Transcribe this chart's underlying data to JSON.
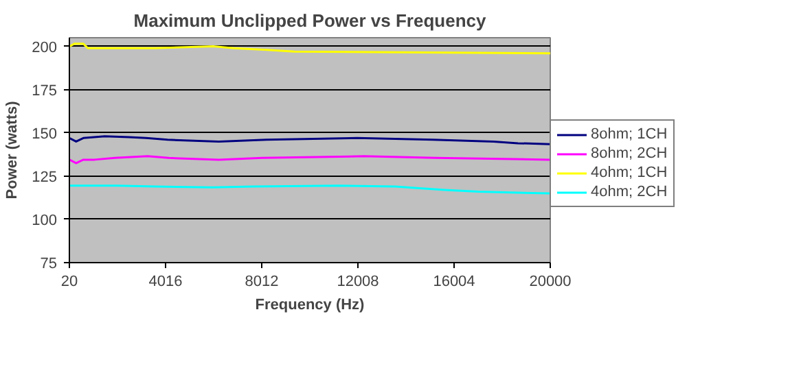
{
  "chart_data": {
    "type": "line",
    "title": "Maximum Unclipped Power vs Frequency",
    "xlabel": "Frequency (Hz)",
    "ylabel": "Power (watts)",
    "xlim": [
      20,
      20000
    ],
    "xticks": [
      20,
      4016,
      8012,
      12008,
      16004,
      20000
    ],
    "ylim": [
      75,
      205
    ],
    "yticks": [
      75,
      100,
      125,
      150,
      175,
      200
    ],
    "grid": "y",
    "legend": "right",
    "line_style": "solid",
    "marker": "none",
    "series": [
      {
        "name": "8ohm; 1CH",
        "color": "#000080",
        "x": [
          20,
          300,
          600,
          1490,
          2500,
          3210,
          4105,
          6230,
          8210,
          11980,
          15130,
          17650,
          18660,
          20000
        ],
        "values": [
          147,
          145,
          147,
          148,
          147.5,
          147,
          146,
          145,
          146,
          147,
          146,
          145,
          144,
          143.5
        ]
      },
      {
        "name": "8ohm; 2CH",
        "color": "#ff00ff",
        "x": [
          20,
          300,
          600,
          1065,
          1905,
          3270,
          4145,
          6230,
          8025,
          12260,
          15240,
          20000
        ],
        "values": [
          134.5,
          132.5,
          134.5,
          134.5,
          135.5,
          136.5,
          135.5,
          134.5,
          135.5,
          136.5,
          135.5,
          134.5
        ]
      },
      {
        "name": "4ohm; 1CH",
        "color": "#ffff00",
        "x": [
          20,
          227,
          600,
          785,
          3585,
          6000,
          6850,
          8250,
          9370,
          20000
        ],
        "values": [
          200,
          201.5,
          201.5,
          199,
          199,
          200,
          199,
          198,
          197,
          196
        ]
      },
      {
        "name": "4ohm; 2CH",
        "color": "#00ffff",
        "x": [
          20,
          1995,
          3620,
          5970,
          7630,
          11210,
          13560,
          14570,
          15620,
          17020,
          20000
        ],
        "values": [
          119.5,
          119.5,
          119,
          118.5,
          119,
          119.5,
          119,
          118,
          117,
          116,
          115
        ]
      }
    ]
  }
}
